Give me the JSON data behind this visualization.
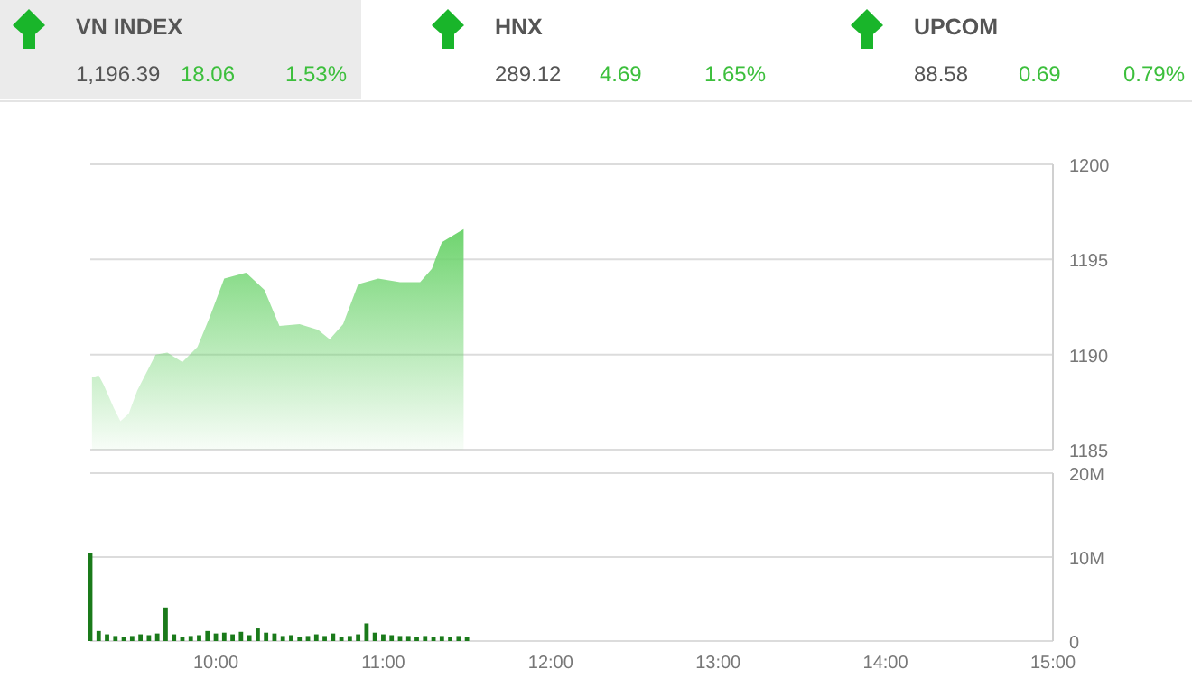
{
  "chart_data": [
    {
      "type": "other",
      "title": "VN INDEX",
      "annotations": [
        "1,196.39",
        "18.06",
        "1.53%"
      ]
    },
    {
      "type": "other",
      "title": "HNX",
      "annotations": [
        "289.12",
        "4.69",
        "1.65%"
      ]
    },
    {
      "type": "other",
      "title": "UPCOM",
      "annotations": [
        "88.58",
        "0.69",
        "0.79%"
      ]
    },
    {
      "type": "area",
      "x": [
        9.26,
        9.3,
        9.33,
        9.39,
        9.43,
        9.48,
        9.53,
        9.64,
        9.71,
        9.8,
        9.89,
        9.96,
        10.05,
        10.18,
        10.29,
        10.38,
        10.5,
        10.61,
        10.68,
        10.76,
        10.85,
        10.97,
        11.1,
        11.22,
        11.29,
        11.35,
        11.48
      ],
      "series": [
        {
          "color": "#6fd46f",
          "values": [
            1188.8,
            1188.9,
            1188.4,
            1187.2,
            1186.5,
            1186.9,
            1188.1,
            1190.0,
            1190.1,
            1189.6,
            1190.4,
            1191.9,
            1194.0,
            1194.3,
            1193.4,
            1191.5,
            1191.6,
            1191.3,
            1190.8,
            1191.6,
            1193.7,
            1194.0,
            1193.8,
            1193.8,
            1194.5,
            1195.9,
            1196.6
          ]
        }
      ],
      "xlim": [
        9.25,
        15
      ],
      "ylim": [
        1185,
        1200
      ],
      "yticks": [
        1185,
        1190,
        1195,
        1200
      ],
      "grid": "y",
      "tick_labels": "y"
    },
    {
      "type": "bar",
      "x": [
        9.25,
        9.3,
        9.35,
        9.4,
        9.45,
        9.5,
        9.55,
        9.6,
        9.65,
        9.7,
        9.75,
        9.8,
        9.85,
        9.9,
        9.95,
        10.0,
        10.05,
        10.1,
        10.15,
        10.2,
        10.25,
        10.3,
        10.35,
        10.4,
        10.45,
        10.5,
        10.55,
        10.6,
        10.65,
        10.7,
        10.75,
        10.8,
        10.85,
        10.9,
        10.95,
        11.0,
        11.05,
        11.1,
        11.15,
        11.2,
        11.25,
        11.3,
        11.35,
        11.4,
        11.45,
        11.5
      ],
      "series": [
        {
          "color": "#1a7a1a",
          "values": [
            10.5,
            1.2,
            0.8,
            0.6,
            0.5,
            0.6,
            0.8,
            0.7,
            0.9,
            4.0,
            0.8,
            0.5,
            0.6,
            0.7,
            1.2,
            0.9,
            1.0,
            0.8,
            1.1,
            0.7,
            1.5,
            1.0,
            0.9,
            0.6,
            0.7,
            0.5,
            0.6,
            0.8,
            0.6,
            0.9,
            0.5,
            0.6,
            0.8,
            2.1,
            1.0,
            0.8,
            0.7,
            0.6,
            0.6,
            0.5,
            0.6,
            0.5,
            0.6,
            0.5,
            0.6,
            0.5
          ]
        }
      ],
      "xlim": [
        9.25,
        15
      ],
      "xticks": [
        {
          "value": 10,
          "label": "10:00"
        },
        {
          "value": 11,
          "label": "11:00"
        },
        {
          "value": 12,
          "label": "12:00"
        },
        {
          "value": 13,
          "label": "13:00"
        },
        {
          "value": 14,
          "label": "14:00"
        },
        {
          "value": 15,
          "label": "15:00"
        }
      ],
      "ylim": [
        0,
        20
      ],
      "yticks": [
        0,
        {
          "value": 10,
          "label": "10M"
        },
        {
          "value": 20,
          "label": "20M"
        }
      ],
      "grid": "y"
    }
  ]
}
